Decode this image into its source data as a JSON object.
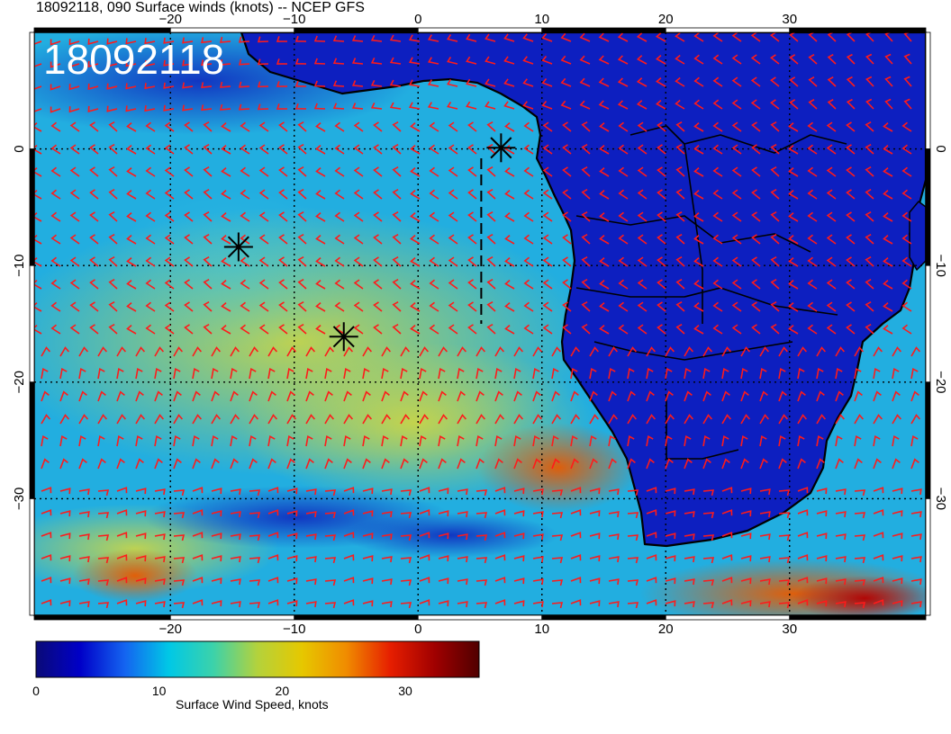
{
  "title": "18092118, 090 Surface winds (knots) -- NCEP GFS",
  "stamp": "18092118",
  "colorbar": {
    "label": "Surface Wind Speed, knots",
    "ticks": [
      "0",
      "10",
      "20",
      "30"
    ],
    "tick_values": [
      0,
      10,
      20,
      30
    ],
    "range": [
      0,
      36
    ],
    "colors": [
      "#0a0a78",
      "#0000c8",
      "#1464f0",
      "#00c8e6",
      "#3cd2aa",
      "#b4d23c",
      "#e6c800",
      "#f08c00",
      "#e61e00",
      "#a00000",
      "#500000"
    ]
  },
  "map": {
    "lon_range": [
      -31,
      41
    ],
    "lat_range": [
      -40,
      10
    ],
    "lon_ticks": [
      "−20",
      "−10",
      "0",
      "10",
      "20",
      "30"
    ],
    "lon_tick_values": [
      -20,
      -10,
      0,
      10,
      20,
      30
    ],
    "lat_ticks": [
      "0",
      "−10",
      "−20",
      "−30"
    ],
    "lat_tick_values": [
      0,
      -10,
      -20,
      -30
    ],
    "barb_color": "#ff1a1a",
    "land_color": "#0018c8",
    "ocean_color": "#20a8d8",
    "markers": [
      {
        "name": "storm-marker",
        "lon": 6.7,
        "lat": 0.1
      },
      {
        "name": "storm-marker",
        "lon": -14.5,
        "lat": -8.4
      },
      {
        "name": "storm-marker",
        "lon": -6.0,
        "lat": -16.1
      }
    ],
    "dashed_track": [
      [
        5.1,
        -0.8
      ],
      [
        5.1,
        -15.0
      ]
    ]
  },
  "chart_data": {
    "type": "heatmap",
    "title": "18092118, 090 Surface winds (knots) -- NCEP GFS",
    "xlabel": "",
    "ylabel": "",
    "xlim": [
      -31,
      41
    ],
    "ylim": [
      -40,
      10
    ],
    "x_ticks": [
      -20,
      -10,
      0,
      10,
      20,
      30
    ],
    "y_ticks": [
      0,
      -10,
      -20,
      -30
    ],
    "grid": true,
    "colorbar_label": "Surface Wind Speed, knots",
    "colorbar_range": [
      0,
      36
    ]
  }
}
